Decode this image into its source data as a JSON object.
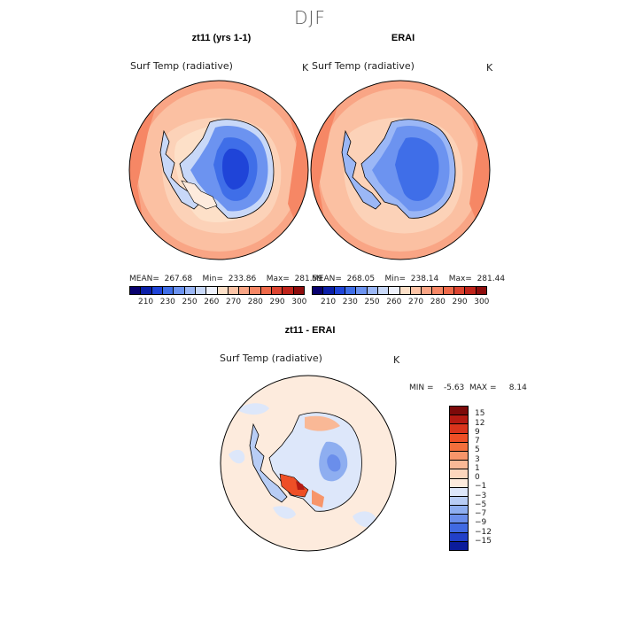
{
  "season": "DJF",
  "panels": {
    "model": {
      "title": "zt11 (yrs 1-1)",
      "variable": "Surf Temp (radiative)",
      "units": "K",
      "stats": "MEAN=  267.68    Min=  233.86    Max=  281.59"
    },
    "obs": {
      "title": "ERAI",
      "variable": "Surf Temp (radiative)",
      "units": "K",
      "stats": "MEAN=  268.05    Min=  238.14    Max=  281.44"
    },
    "diff": {
      "title": "zt11 - ERAI",
      "variable": "Surf Temp (radiative)",
      "units": "K",
      "stats": "MIN =    -5.63  MAX =     8.14"
    }
  },
  "colorbar_abs": {
    "ticks": [
      "210",
      "230",
      "250",
      "260",
      "270",
      "280",
      "290",
      "300"
    ],
    "colors": [
      "#08006e",
      "#0b1fa8",
      "#1f44d8",
      "#3f6ee8",
      "#6c93f0",
      "#9bb7f6",
      "#c8d8f8",
      "#eef1fb",
      "#fde0c8",
      "#fcc3a5",
      "#f9a585",
      "#f68765",
      "#ef6a4a",
      "#dc4430",
      "#c0241b",
      "#8e0d0d"
    ]
  },
  "colorbar_diff": {
    "ticks": [
      "15",
      "12",
      "9",
      "7",
      "5",
      "3",
      "1",
      "0",
      "−1",
      "−3",
      "−5",
      "−7",
      "−9",
      "−12",
      "−15"
    ],
    "colors": [
      "#7d0a0a",
      "#b51a12",
      "#d9341c",
      "#ee4f26",
      "#f46f3c",
      "#f7956a",
      "#f9b896",
      "#fcd6bd",
      "#fdebdd",
      "#dde7fa",
      "#b8cdf5",
      "#8eaef0",
      "#6a8eeb",
      "#416ae2",
      "#2240c8",
      "#0b1c9c"
    ]
  }
}
